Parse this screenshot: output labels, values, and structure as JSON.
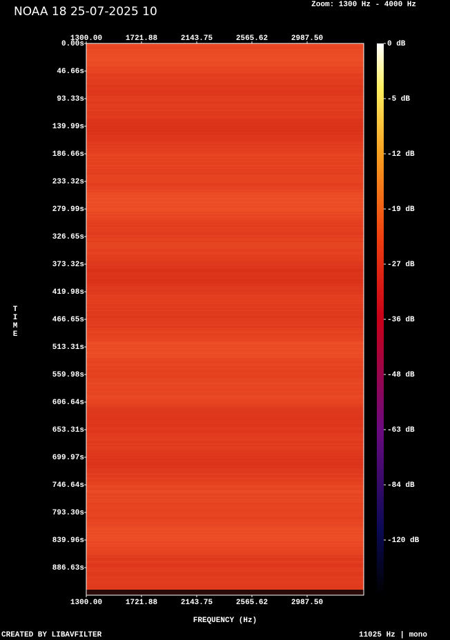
{
  "chart_data": {
    "type": "spectrogram",
    "title": "NOAA 18 25-07-2025 10",
    "subtitle": "Zoom: 1300 Hz - 4000 Hz",
    "x_label": "FREQUENCY (Hz)",
    "y_label": "TIME",
    "xlim": [
      1300,
      3420
    ],
    "xticks": [
      {
        "value": 1300,
        "label": "1300.00"
      },
      {
        "value": 1721.88,
        "label": "1721.88"
      },
      {
        "value": 2143.75,
        "label": "2143.75"
      },
      {
        "value": 2565.62,
        "label": "2565.62"
      },
      {
        "value": 2987.5,
        "label": "2987.50"
      }
    ],
    "ylim": [
      0,
      933.3
    ],
    "yticks": [
      {
        "value": 0,
        "label": "0.00s"
      },
      {
        "value": 46.66,
        "label": "46.66s"
      },
      {
        "value": 93.33,
        "label": "93.33s"
      },
      {
        "value": 139.99,
        "label": "139.99s"
      },
      {
        "value": 186.66,
        "label": "186.66s"
      },
      {
        "value": 233.32,
        "label": "233.32s"
      },
      {
        "value": 279.99,
        "label": "279.99s"
      },
      {
        "value": 326.65,
        "label": "326.65s"
      },
      {
        "value": 373.32,
        "label": "373.32s"
      },
      {
        "value": 419.98,
        "label": "419.98s"
      },
      {
        "value": 466.65,
        "label": "466.65s"
      },
      {
        "value": 513.31,
        "label": "513.31s"
      },
      {
        "value": 559.98,
        "label": "559.98s"
      },
      {
        "value": 606.64,
        "label": "606.64s"
      },
      {
        "value": 653.31,
        "label": "653.31s"
      },
      {
        "value": 699.97,
        "label": "699.97s"
      },
      {
        "value": 746.64,
        "label": "746.64s"
      },
      {
        "value": 793.3,
        "label": "793.30s"
      },
      {
        "value": 839.96,
        "label": "839.96s"
      },
      {
        "value": 886.63,
        "label": "886.63s"
      }
    ],
    "colorbar_ticks": [
      {
        "value": 0,
        "label": "0 dB"
      },
      {
        "value": -5,
        "label": "-5 dB"
      },
      {
        "value": -12,
        "label": "-12 dB"
      },
      {
        "value": -19,
        "label": "-19 dB"
      },
      {
        "value": -27,
        "label": "-27 dB"
      },
      {
        "value": -36,
        "label": "-36 dB"
      },
      {
        "value": -48,
        "label": "-48 dB"
      },
      {
        "value": -63,
        "label": "-63 dB"
      },
      {
        "value": -84,
        "label": "-84 dB"
      },
      {
        "value": -120,
        "label": "-120 dB"
      }
    ],
    "footer_left": "CREATED BY LIBAVFILTER",
    "footer_right": "11025 Hz | mono"
  }
}
